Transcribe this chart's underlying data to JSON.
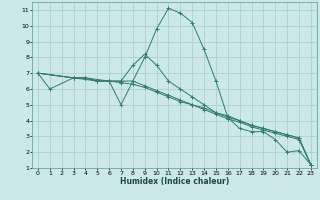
{
  "xlabel": "Humidex (Indice chaleur)",
  "ylabel": "",
  "bg_color": "#cde8e8",
  "grid_color": "#aacccc",
  "line_color": "#2e7d6e",
  "xlim": [
    -0.5,
    23.5
  ],
  "ylim": [
    1,
    11.5
  ],
  "xticks": [
    0,
    1,
    2,
    3,
    4,
    5,
    6,
    7,
    8,
    9,
    10,
    11,
    12,
    13,
    14,
    15,
    16,
    17,
    18,
    19,
    20,
    21,
    22,
    23
  ],
  "yticks": [
    1,
    2,
    3,
    4,
    5,
    6,
    7,
    8,
    9,
    10,
    11
  ],
  "series": [
    {
      "x": [
        0,
        1,
        3,
        4,
        6,
        7,
        8,
        9,
        10,
        11,
        12,
        13,
        14,
        15,
        16,
        17,
        18,
        19,
        20,
        21,
        22,
        23
      ],
      "y": [
        7.0,
        6.0,
        6.7,
        6.7,
        6.5,
        5.0,
        6.5,
        8.0,
        9.8,
        11.1,
        10.8,
        10.2,
        8.5,
        6.5,
        4.2,
        3.5,
        3.3,
        3.3,
        2.8,
        2.0,
        2.1,
        1.2
      ]
    },
    {
      "x": [
        0,
        3,
        5,
        6,
        7,
        8,
        9,
        10,
        11,
        12,
        13,
        14,
        15,
        16,
        17,
        18,
        19,
        20,
        21,
        22,
        23
      ],
      "y": [
        7.0,
        6.7,
        6.5,
        6.5,
        6.5,
        7.5,
        8.2,
        7.5,
        6.5,
        6.0,
        5.5,
        5.0,
        4.5,
        4.3,
        4.0,
        3.7,
        3.5,
        3.3,
        3.1,
        2.9,
        1.2
      ]
    },
    {
      "x": [
        0,
        3,
        4,
        5,
        6,
        7,
        8,
        9,
        10,
        11,
        12,
        13,
        14,
        15,
        16,
        17,
        18,
        19,
        20,
        21,
        22,
        23
      ],
      "y": [
        7.0,
        6.7,
        6.7,
        6.5,
        6.5,
        6.5,
        6.5,
        6.2,
        5.9,
        5.6,
        5.3,
        5.0,
        4.8,
        4.5,
        4.2,
        4.0,
        3.7,
        3.5,
        3.3,
        3.1,
        2.9,
        1.2
      ]
    },
    {
      "x": [
        0,
        3,
        4,
        5,
        6,
        7,
        8,
        9,
        10,
        11,
        12,
        13,
        14,
        15,
        16,
        17,
        18,
        19,
        20,
        21,
        22,
        23
      ],
      "y": [
        7.0,
        6.7,
        6.7,
        6.5,
        6.5,
        6.4,
        6.3,
        6.1,
        5.8,
        5.5,
        5.2,
        5.0,
        4.7,
        4.4,
        4.1,
        3.9,
        3.6,
        3.4,
        3.2,
        3.0,
        2.8,
        1.2
      ]
    }
  ]
}
